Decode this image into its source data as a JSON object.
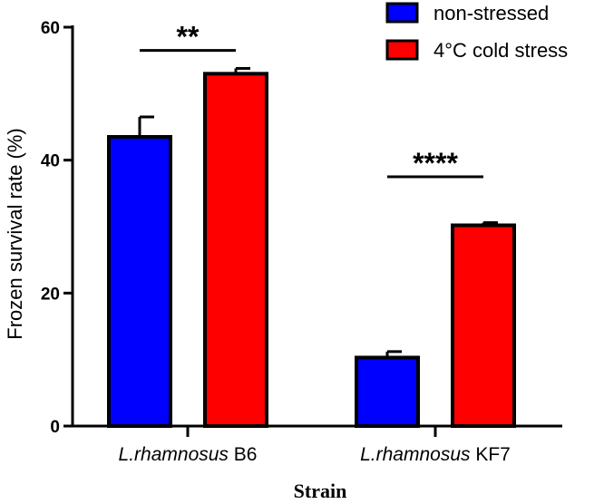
{
  "chart_data": {
    "type": "bar",
    "title": "",
    "xlabel": "Strain",
    "ylabel": "Frozen survival rate (%)",
    "ylim": [
      0,
      60
    ],
    "yticks": [
      0,
      20,
      40,
      60
    ],
    "categories": [
      {
        "italic": "L.rhamnosus",
        "plain": " B6"
      },
      {
        "italic": "L.rhamnosus",
        "plain": " KF7"
      }
    ],
    "series": [
      {
        "name": "non-stressed",
        "color": "#0000ff",
        "values": [
          43.5,
          10.3
        ],
        "errors": [
          3.0,
          0.9
        ]
      },
      {
        "name": "4°C cold stress",
        "color": "#ff0000",
        "values": [
          53.0,
          30.2
        ],
        "errors": [
          0.8,
          0.4
        ]
      }
    ],
    "significance": [
      {
        "category_index": 0,
        "label": "**",
        "y": 56.5
      },
      {
        "category_index": 1,
        "label": "****",
        "y": 37.5
      }
    ],
    "legend_position": "top-right",
    "grid": false
  }
}
